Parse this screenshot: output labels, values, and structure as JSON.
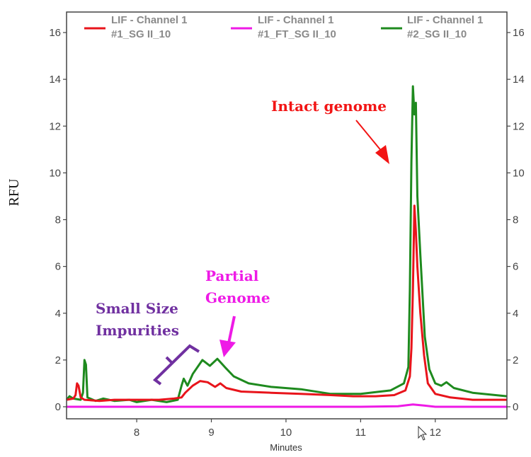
{
  "chart_data": {
    "type": "line",
    "title": "",
    "xlabel": "Minutes",
    "ylabel": "RFU",
    "xlim": [
      7.06,
      12.96
    ],
    "ylim": [
      -0.6,
      16.9
    ],
    "x_ticks": [
      8,
      9,
      10,
      11,
      12
    ],
    "y_ticks": [
      0,
      2,
      4,
      6,
      8,
      10,
      12,
      14,
      16
    ],
    "y_ticks_right": [
      0,
      2,
      4,
      6,
      8,
      10,
      12,
      14,
      16
    ],
    "grid": false,
    "legend_position": "top",
    "series": [
      {
        "name_line1": "LIF - Channel 1",
        "name_line2": "#1_SG II_10",
        "color": "#e8141b",
        "points": [
          [
            7.06,
            0.3
          ],
          [
            7.15,
            0.35
          ],
          [
            7.18,
            0.5
          ],
          [
            7.2,
            1.0
          ],
          [
            7.22,
            0.9
          ],
          [
            7.25,
            0.4
          ],
          [
            7.3,
            0.3
          ],
          [
            7.5,
            0.25
          ],
          [
            7.7,
            0.3
          ],
          [
            7.9,
            0.3
          ],
          [
            8.1,
            0.3
          ],
          [
            8.3,
            0.3
          ],
          [
            8.5,
            0.35
          ],
          [
            8.6,
            0.4
          ],
          [
            8.65,
            0.6
          ],
          [
            8.75,
            0.9
          ],
          [
            8.85,
            1.1
          ],
          [
            8.95,
            1.05
          ],
          [
            9.05,
            0.85
          ],
          [
            9.12,
            1.0
          ],
          [
            9.2,
            0.8
          ],
          [
            9.4,
            0.65
          ],
          [
            9.8,
            0.6
          ],
          [
            10.2,
            0.55
          ],
          [
            10.6,
            0.5
          ],
          [
            10.9,
            0.45
          ],
          [
            11.2,
            0.45
          ],
          [
            11.45,
            0.5
          ],
          [
            11.6,
            0.7
          ],
          [
            11.66,
            1.3
          ],
          [
            11.68,
            2.5
          ],
          [
            11.7,
            5.0
          ],
          [
            11.72,
            8.6
          ],
          [
            11.74,
            7.5
          ],
          [
            11.76,
            6.0
          ],
          [
            11.8,
            4.0
          ],
          [
            11.85,
            2.2
          ],
          [
            11.9,
            1.0
          ],
          [
            12.0,
            0.55
          ],
          [
            12.2,
            0.4
          ],
          [
            12.5,
            0.3
          ],
          [
            12.96,
            0.3
          ]
        ]
      },
      {
        "name_line1": "LIF - Channel 1",
        "name_line2": "#1_FT_SG II_10",
        "color": "#ee1ae6",
        "points": [
          [
            7.06,
            0.0
          ],
          [
            7.5,
            0.0
          ],
          [
            8.0,
            0.0
          ],
          [
            9.0,
            0.0
          ],
          [
            10.0,
            0.0
          ],
          [
            11.0,
            0.0
          ],
          [
            11.5,
            0.02
          ],
          [
            11.7,
            0.1
          ],
          [
            11.85,
            0.05
          ],
          [
            12.0,
            0.0
          ],
          [
            12.96,
            0.0
          ]
        ]
      },
      {
        "name_line1": "LIF - Channel 1",
        "name_line2": "#2_SG II_10",
        "color": "#1e8a1e",
        "points": [
          [
            7.06,
            0.3
          ],
          [
            7.1,
            0.45
          ],
          [
            7.15,
            0.35
          ],
          [
            7.25,
            0.3
          ],
          [
            7.28,
            0.6
          ],
          [
            7.3,
            2.0
          ],
          [
            7.32,
            1.8
          ],
          [
            7.34,
            0.4
          ],
          [
            7.45,
            0.25
          ],
          [
            7.55,
            0.35
          ],
          [
            7.7,
            0.25
          ],
          [
            7.9,
            0.3
          ],
          [
            8.0,
            0.2
          ],
          [
            8.2,
            0.3
          ],
          [
            8.4,
            0.2
          ],
          [
            8.55,
            0.3
          ],
          [
            8.6,
            0.9
          ],
          [
            8.63,
            1.2
          ],
          [
            8.68,
            0.9
          ],
          [
            8.75,
            1.4
          ],
          [
            8.88,
            2.0
          ],
          [
            8.98,
            1.75
          ],
          [
            9.08,
            2.05
          ],
          [
            9.18,
            1.7
          ],
          [
            9.3,
            1.3
          ],
          [
            9.5,
            1.0
          ],
          [
            9.8,
            0.85
          ],
          [
            10.2,
            0.75
          ],
          [
            10.6,
            0.55
          ],
          [
            11.0,
            0.55
          ],
          [
            11.4,
            0.7
          ],
          [
            11.58,
            1.0
          ],
          [
            11.64,
            1.7
          ],
          [
            11.66,
            5.0
          ],
          [
            11.68,
            10.5
          ],
          [
            11.7,
            13.7
          ],
          [
            11.72,
            12.5
          ],
          [
            11.74,
            13.0
          ],
          [
            11.76,
            9.0
          ],
          [
            11.8,
            6.5
          ],
          [
            11.86,
            3.0
          ],
          [
            11.92,
            1.6
          ],
          [
            12.0,
            1.0
          ],
          [
            12.08,
            0.9
          ],
          [
            12.15,
            1.05
          ],
          [
            12.25,
            0.8
          ],
          [
            12.5,
            0.6
          ],
          [
            12.96,
            0.45
          ]
        ]
      }
    ],
    "annotations": [
      {
        "text": "Intact genome",
        "color": "#f21414"
      },
      {
        "text_line1": "Partial",
        "text_line2": "Genome",
        "color": "#ee1ae6"
      },
      {
        "text_line1": "Small Size",
        "text_line2": "Impurities",
        "color": "#7030a0"
      }
    ]
  }
}
